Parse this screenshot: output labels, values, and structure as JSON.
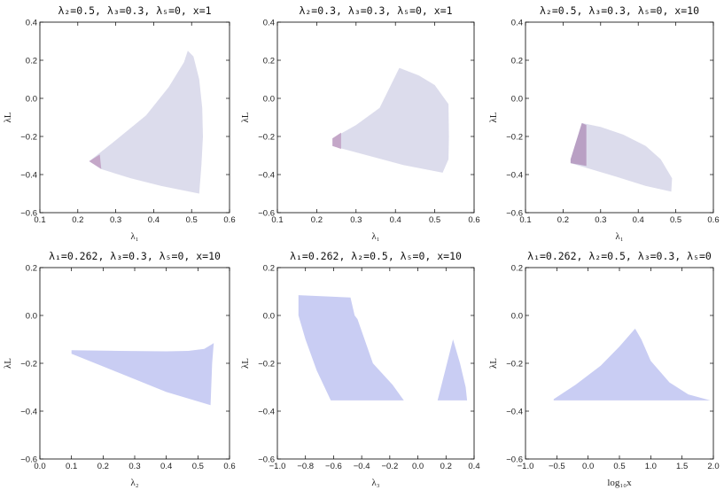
{
  "chart_data": [
    {
      "type": "area",
      "title": "λ₂=0.5, λ₃=0.3, λ₅=0, x=1",
      "xlabel": "λ₁",
      "ylabel": "λL",
      "xlim": [
        0.1,
        0.6
      ],
      "ylim": [
        -0.6,
        0.4
      ],
      "xticks": [
        "0.1",
        "0.2",
        "0.3",
        "0.4",
        "0.5",
        "0.6"
      ],
      "yticks": [
        "−0.6",
        "−0.4",
        "−0.2",
        "0.0",
        "0.2",
        "0.4"
      ],
      "series": [
        {
          "color": "#dcdcec",
          "points": [
            [
              0.23,
              -0.33
            ],
            [
              0.3,
              -0.22
            ],
            [
              0.38,
              -0.09
            ],
            [
              0.44,
              0.06
            ],
            [
              0.48,
              0.19
            ],
            [
              0.49,
              0.25
            ],
            [
              0.505,
              0.22
            ],
            [
              0.52,
              0.1
            ],
            [
              0.528,
              -0.05
            ],
            [
              0.53,
              -0.2
            ],
            [
              0.526,
              -0.35
            ],
            [
              0.52,
              -0.5
            ],
            [
              0.42,
              -0.46
            ],
            [
              0.34,
              -0.42
            ],
            [
              0.26,
              -0.37
            ],
            [
              0.23,
              -0.33
            ]
          ]
        },
        {
          "color": "#c4a7c8",
          "points": [
            [
              0.23,
              -0.33
            ],
            [
              0.258,
              -0.295
            ],
            [
              0.262,
              -0.37
            ],
            [
              0.23,
              -0.33
            ]
          ]
        }
      ]
    },
    {
      "type": "area",
      "title": "λ₂=0.3, λ₃=0.3, λ₅=0, x=1",
      "xlabel": "λ₁",
      "ylabel": "λL",
      "xlim": [
        0.1,
        0.6
      ],
      "ylim": [
        -0.6,
        0.4
      ],
      "xticks": [
        "0.1",
        "0.2",
        "0.3",
        "0.4",
        "0.5",
        "0.6"
      ],
      "yticks": [
        "−0.6",
        "−0.4",
        "−0.2",
        "0.0",
        "0.2",
        "0.4"
      ],
      "series": [
        {
          "color": "#dcdcec",
          "points": [
            [
              0.24,
              -0.21
            ],
            [
              0.3,
              -0.14
            ],
            [
              0.36,
              -0.05
            ],
            [
              0.41,
              0.16
            ],
            [
              0.46,
              0.12
            ],
            [
              0.5,
              0.07
            ],
            [
              0.535,
              -0.03
            ],
            [
              0.536,
              -0.2
            ],
            [
              0.535,
              -0.32
            ],
            [
              0.52,
              -0.39
            ],
            [
              0.42,
              -0.35
            ],
            [
              0.33,
              -0.3
            ],
            [
              0.24,
              -0.25
            ],
            [
              0.24,
              -0.21
            ]
          ]
        },
        {
          "color": "#c4a7c8",
          "points": [
            [
              0.24,
              -0.21
            ],
            [
              0.262,
              -0.18
            ],
            [
              0.262,
              -0.265
            ],
            [
              0.24,
              -0.25
            ]
          ]
        }
      ]
    },
    {
      "type": "area",
      "title": "λ₂=0.5, λ₃=0.3, λ₅=0, x=10",
      "xlabel": "λ₁",
      "ylabel": "λL",
      "xlim": [
        0.1,
        0.6
      ],
      "ylim": [
        -0.6,
        0.4
      ],
      "xticks": [
        "0.1",
        "0.2",
        "0.3",
        "0.4",
        "0.5",
        "0.6"
      ],
      "yticks": [
        "−0.6",
        "−0.4",
        "−0.2",
        "0.0",
        "0.2",
        "0.4"
      ],
      "series": [
        {
          "color": "#dcdcec",
          "points": [
            [
              0.22,
              -0.32
            ],
            [
              0.25,
              -0.13
            ],
            [
              0.3,
              -0.15
            ],
            [
              0.36,
              -0.19
            ],
            [
              0.42,
              -0.25
            ],
            [
              0.46,
              -0.32
            ],
            [
              0.49,
              -0.42
            ],
            [
              0.488,
              -0.49
            ],
            [
              0.42,
              -0.46
            ],
            [
              0.34,
              -0.41
            ],
            [
              0.22,
              -0.34
            ],
            [
              0.22,
              -0.32
            ]
          ]
        },
        {
          "color": "#b9a0c4",
          "points": [
            [
              0.22,
              -0.32
            ],
            [
              0.25,
              -0.13
            ],
            [
              0.262,
              -0.14
            ],
            [
              0.262,
              -0.355
            ],
            [
              0.22,
              -0.34
            ]
          ]
        }
      ]
    },
    {
      "type": "area",
      "title": "λ₁=0.262, λ₃=0.3, λ₅=0, x=10",
      "xlabel": "λ₂",
      "ylabel": "λL",
      "xlim": [
        0.0,
        0.6
      ],
      "ylim": [
        -0.6,
        0.2
      ],
      "xticks": [
        "0.0",
        "0.1",
        "0.2",
        "0.3",
        "0.4",
        "0.5",
        "0.6"
      ],
      "yticks": [
        "−0.6",
        "−0.4",
        "−0.2",
        "0.0",
        "0.2"
      ],
      "series": [
        {
          "color": "#c9cdf3",
          "points": [
            [
              0.1,
              -0.145
            ],
            [
              0.25,
              -0.148
            ],
            [
              0.4,
              -0.15
            ],
            [
              0.47,
              -0.148
            ],
            [
              0.52,
              -0.14
            ],
            [
              0.545,
              -0.12
            ],
            [
              0.55,
              -0.115
            ],
            [
              0.545,
              -0.2
            ],
            [
              0.54,
              -0.375
            ],
            [
              0.4,
              -0.32
            ],
            [
              0.25,
              -0.24
            ],
            [
              0.1,
              -0.16
            ],
            [
              0.1,
              -0.145
            ]
          ]
        }
      ]
    },
    {
      "type": "area",
      "title": "λ₁=0.262, λ₂=0.5, λ₅=0, x=10",
      "xlabel": "λ₃",
      "ylabel": "λL",
      "xlim": [
        -1.0,
        0.4
      ],
      "ylim": [
        -0.6,
        0.2
      ],
      "xticks": [
        "−1.0",
        "−0.8",
        "−0.6",
        "−0.4",
        "−0.2",
        "0.0",
        "0.2",
        "0.4"
      ],
      "yticks": [
        "−0.6",
        "−0.4",
        "−0.2",
        "0.0",
        "0.2"
      ],
      "series": [
        {
          "color": "#c9cdf3",
          "points": [
            [
              -0.85,
              0.085
            ],
            [
              -0.48,
              0.075
            ],
            [
              -0.45,
              0.0
            ],
            [
              -0.43,
              -0.015
            ],
            [
              -0.32,
              -0.2
            ],
            [
              -0.18,
              -0.29
            ],
            [
              -0.1,
              -0.355
            ],
            [
              -0.62,
              -0.355
            ],
            [
              -0.72,
              -0.23
            ],
            [
              -0.8,
              -0.1
            ],
            [
              -0.85,
              0.0
            ],
            [
              -0.85,
              0.085
            ]
          ]
        },
        {
          "color": "#c9cdf3",
          "points": [
            [
              0.14,
              -0.355
            ],
            [
              0.19,
              -0.24
            ],
            [
              0.25,
              -0.1
            ],
            [
              0.3,
              -0.2
            ],
            [
              0.34,
              -0.3
            ],
            [
              0.35,
              -0.355
            ],
            [
              0.14,
              -0.355
            ]
          ]
        }
      ]
    },
    {
      "type": "area",
      "title": "λ₁=0.262, λ₂=0.5, λ₃=0.3, λ₅=0",
      "xlabel": "log₁₀x",
      "ylabel": "λL",
      "xlim": [
        -1.0,
        2.0
      ],
      "ylim": [
        -0.6,
        0.2
      ],
      "xticks": [
        "−1.0",
        "−0.5",
        "0.0",
        "0.5",
        "1.0",
        "1.5",
        "2.0"
      ],
      "yticks": [
        "−0.6",
        "−0.4",
        "−0.2",
        "0.0",
        "0.2"
      ],
      "series": [
        {
          "color": "#c9cdf3",
          "points": [
            [
              -0.55,
              -0.35
            ],
            [
              -0.2,
              -0.29
            ],
            [
              0.2,
              -0.21
            ],
            [
              0.5,
              -0.13
            ],
            [
              0.75,
              -0.055
            ],
            [
              0.85,
              -0.1
            ],
            [
              1.0,
              -0.19
            ],
            [
              1.3,
              -0.28
            ],
            [
              1.6,
              -0.33
            ],
            [
              1.95,
              -0.355
            ],
            [
              -0.55,
              -0.355
            ]
          ]
        }
      ]
    }
  ]
}
